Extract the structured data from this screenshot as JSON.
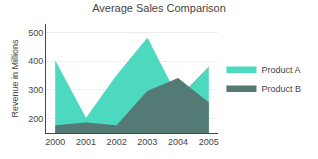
{
  "chart_data": {
    "type": "area",
    "title": "Average Sales Comparison",
    "ylabel": "Revenue in Millions",
    "x": [
      2000,
      2001,
      2002,
      2003,
      2004,
      2005
    ],
    "series": [
      {
        "name": "Product A",
        "color": "#4DD9C0",
        "values": [
          400,
          200,
          350,
          480,
          270,
          380
        ]
      },
      {
        "name": "Product B",
        "color": "#547a75",
        "values": [
          175,
          185,
          175,
          295,
          340,
          255
        ]
      }
    ],
    "xlim": [
      1999.7,
      2005.3
    ],
    "xticks": [
      2000,
      2001,
      2002,
      2003,
      2004,
      2005
    ],
    "ylim": [
      150,
      530
    ],
    "yticks": [
      200,
      300,
      400,
      500
    ],
    "grid": "y",
    "legend": "right"
  }
}
